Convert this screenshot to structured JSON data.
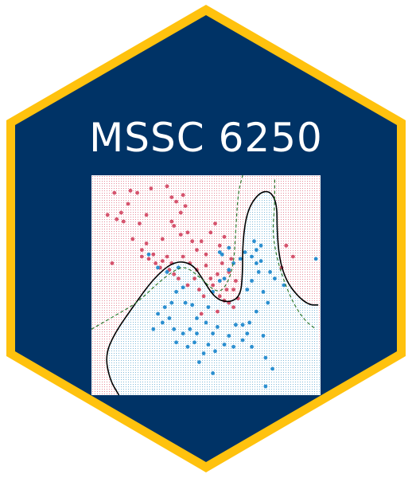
{
  "logo": {
    "title": "MSSC 6250",
    "colors": {
      "background": "#ffffff",
      "hex_fill": "#003366",
      "hex_border": "#ffc20e",
      "text": "#ffffff"
    }
  },
  "chart_data": {
    "type": "scatter",
    "title": "",
    "xlabel": "",
    "ylabel": "",
    "grid": false,
    "legend": "none",
    "xlim": [
      0,
      1
    ],
    "ylim": [
      0,
      1
    ],
    "background_regions": [
      {
        "class": "red",
        "color": "#f3c9d0"
      },
      {
        "class": "blue",
        "color": "#c6e0ee"
      }
    ],
    "series": [
      {
        "color": "#d5536d",
        "points": [
          [
            0.1,
            0.92
          ],
          [
            0.07,
            0.82
          ],
          [
            0.11,
            0.8
          ],
          [
            0.09,
            0.6
          ],
          [
            0.17,
            0.93
          ],
          [
            0.16,
            0.87
          ],
          [
            0.13,
            0.83
          ],
          [
            0.14,
            0.79
          ],
          [
            0.21,
            0.78
          ],
          [
            0.18,
            0.71
          ],
          [
            0.22,
            0.66
          ],
          [
            0.22,
            0.63
          ],
          [
            0.24,
            0.69
          ],
          [
            0.2,
            0.92
          ],
          [
            0.26,
            0.94
          ],
          [
            0.24,
            0.82
          ],
          [
            0.33,
            0.95
          ],
          [
            0.35,
            0.9
          ],
          [
            0.37,
            0.88
          ],
          [
            0.4,
            0.91
          ],
          [
            0.41,
            0.86
          ],
          [
            0.39,
            0.83
          ],
          [
            0.35,
            0.79
          ],
          [
            0.36,
            0.77
          ],
          [
            0.42,
            0.74
          ],
          [
            0.44,
            0.7
          ],
          [
            0.39,
            0.73
          ],
          [
            0.31,
            0.71
          ],
          [
            0.27,
            0.64
          ],
          [
            0.25,
            0.62
          ],
          [
            0.28,
            0.6
          ],
          [
            0.31,
            0.61
          ],
          [
            0.33,
            0.63
          ],
          [
            0.3,
            0.58
          ],
          [
            0.35,
            0.6
          ],
          [
            0.36,
            0.55
          ],
          [
            0.4,
            0.63
          ],
          [
            0.43,
            0.6
          ],
          [
            0.46,
            0.66
          ],
          [
            0.48,
            0.7
          ],
          [
            0.5,
            0.64
          ],
          [
            0.52,
            0.74
          ],
          [
            0.54,
            0.78
          ],
          [
            0.56,
            0.68
          ],
          [
            0.58,
            0.72
          ],
          [
            0.61,
            0.62
          ],
          [
            0.6,
            0.56
          ],
          [
            0.57,
            0.6
          ],
          [
            0.55,
            0.55
          ],
          [
            0.52,
            0.53
          ],
          [
            0.5,
            0.59
          ],
          [
            0.53,
            0.5
          ],
          [
            0.56,
            0.45
          ],
          [
            0.58,
            0.43
          ],
          [
            0.6,
            0.42
          ],
          [
            0.62,
            0.4
          ],
          [
            0.64,
            0.44
          ],
          [
            0.59,
            0.48
          ],
          [
            0.49,
            0.45
          ],
          [
            0.45,
            0.53
          ],
          [
            0.47,
            0.48
          ],
          [
            0.46,
            0.57
          ],
          [
            0.63,
            0.52
          ],
          [
            0.62,
            0.48
          ],
          [
            0.85,
            0.68
          ],
          [
            0.88,
            0.63
          ],
          [
            0.83,
            0.58
          ],
          [
            0.38,
            0.53
          ],
          [
            0.34,
            0.57
          ],
          [
            0.42,
            0.5
          ],
          [
            0.48,
            0.37
          ],
          [
            0.55,
            0.38
          ]
        ]
      },
      {
        "color": "#2b8fd0",
        "points": [
          [
            0.25,
            0.64
          ],
          [
            0.29,
            0.58
          ],
          [
            0.33,
            0.56
          ],
          [
            0.38,
            0.58
          ],
          [
            0.4,
            0.49
          ],
          [
            0.37,
            0.47
          ],
          [
            0.41,
            0.42
          ],
          [
            0.35,
            0.42
          ],
          [
            0.32,
            0.4
          ],
          [
            0.29,
            0.37
          ],
          [
            0.31,
            0.33
          ],
          [
            0.27,
            0.3
          ],
          [
            0.34,
            0.35
          ],
          [
            0.44,
            0.41
          ],
          [
            0.46,
            0.35
          ],
          [
            0.5,
            0.33
          ],
          [
            0.51,
            0.4
          ],
          [
            0.53,
            0.47
          ],
          [
            0.56,
            0.52
          ],
          [
            0.58,
            0.53
          ],
          [
            0.6,
            0.57
          ],
          [
            0.62,
            0.6
          ],
          [
            0.57,
            0.64
          ],
          [
            0.56,
            0.65
          ],
          [
            0.6,
            0.67
          ],
          [
            0.65,
            0.62
          ],
          [
            0.67,
            0.65
          ],
          [
            0.7,
            0.63
          ],
          [
            0.72,
            0.66
          ],
          [
            0.74,
            0.68
          ],
          [
            0.71,
            0.7
          ],
          [
            0.73,
            0.56
          ],
          [
            0.7,
            0.52
          ],
          [
            0.68,
            0.48
          ],
          [
            0.75,
            0.47
          ],
          [
            0.78,
            0.56
          ],
          [
            0.8,
            0.53
          ],
          [
            0.84,
            0.5
          ],
          [
            0.77,
            0.42
          ],
          [
            0.72,
            0.38
          ],
          [
            0.69,
            0.33
          ],
          [
            0.68,
            0.28
          ],
          [
            0.66,
            0.25
          ],
          [
            0.62,
            0.22
          ],
          [
            0.58,
            0.23
          ],
          [
            0.54,
            0.2
          ],
          [
            0.51,
            0.23
          ],
          [
            0.49,
            0.19
          ],
          [
            0.47,
            0.15
          ],
          [
            0.53,
            0.28
          ],
          [
            0.45,
            0.24
          ],
          [
            0.42,
            0.22
          ],
          [
            0.4,
            0.28
          ],
          [
            0.37,
            0.24
          ],
          [
            0.63,
            0.32
          ],
          [
            0.6,
            0.27
          ],
          [
            0.76,
            0.17
          ],
          [
            0.79,
            0.12
          ],
          [
            0.76,
            0.04
          ],
          [
            0.53,
            0.1
          ],
          [
            0.66,
            0.32
          ],
          [
            0.7,
            0.22
          ],
          [
            0.75,
            0.27
          ],
          [
            0.43,
            0.3
          ],
          [
            0.36,
            0.3
          ],
          [
            0.46,
            0.28
          ],
          [
            0.55,
            0.31
          ],
          [
            0.98,
            0.62
          ],
          [
            0.72,
            0.6
          ],
          [
            0.74,
            0.61
          ]
        ]
      }
    ],
    "curves": [
      {
        "style": "solid",
        "color": "#000000",
        "points": [
          [
            0.12,
            0.0
          ],
          [
            0.08,
            0.07
          ],
          [
            0.06,
            0.18
          ],
          [
            0.1,
            0.28
          ],
          [
            0.18,
            0.4
          ],
          [
            0.27,
            0.53
          ],
          [
            0.36,
            0.61
          ],
          [
            0.44,
            0.6
          ],
          [
            0.49,
            0.52
          ],
          [
            0.54,
            0.44
          ],
          [
            0.6,
            0.42
          ],
          [
            0.65,
            0.45
          ],
          [
            0.66,
            0.55
          ],
          [
            0.66,
            0.7
          ],
          [
            0.68,
            0.84
          ],
          [
            0.73,
            0.92
          ],
          [
            0.78,
            0.93
          ],
          [
            0.81,
            0.87
          ],
          [
            0.81,
            0.75
          ],
          [
            0.82,
            0.62
          ],
          [
            0.85,
            0.52
          ],
          [
            0.9,
            0.45
          ],
          [
            0.95,
            0.41
          ],
          [
            0.99,
            0.41
          ]
        ]
      },
      {
        "style": "dashed",
        "color": "#2f7a2f",
        "points": [
          [
            0.0,
            0.3
          ],
          [
            0.1,
            0.36
          ],
          [
            0.2,
            0.42
          ],
          [
            0.3,
            0.52
          ],
          [
            0.38,
            0.58
          ],
          [
            0.42,
            0.58
          ],
          [
            0.48,
            0.53
          ],
          [
            0.54,
            0.47
          ],
          [
            0.58,
            0.48
          ],
          [
            0.62,
            0.58
          ],
          [
            0.63,
            0.75
          ],
          [
            0.64,
            0.92
          ],
          [
            0.66,
            1.0
          ],
          null,
          [
            0.8,
            0.98
          ],
          [
            0.8,
            0.86
          ],
          [
            0.79,
            0.74
          ],
          [
            0.81,
            0.62
          ],
          [
            0.84,
            0.52
          ],
          [
            0.88,
            0.42
          ],
          [
            0.93,
            0.34
          ],
          [
            0.98,
            0.3
          ]
        ]
      }
    ]
  }
}
